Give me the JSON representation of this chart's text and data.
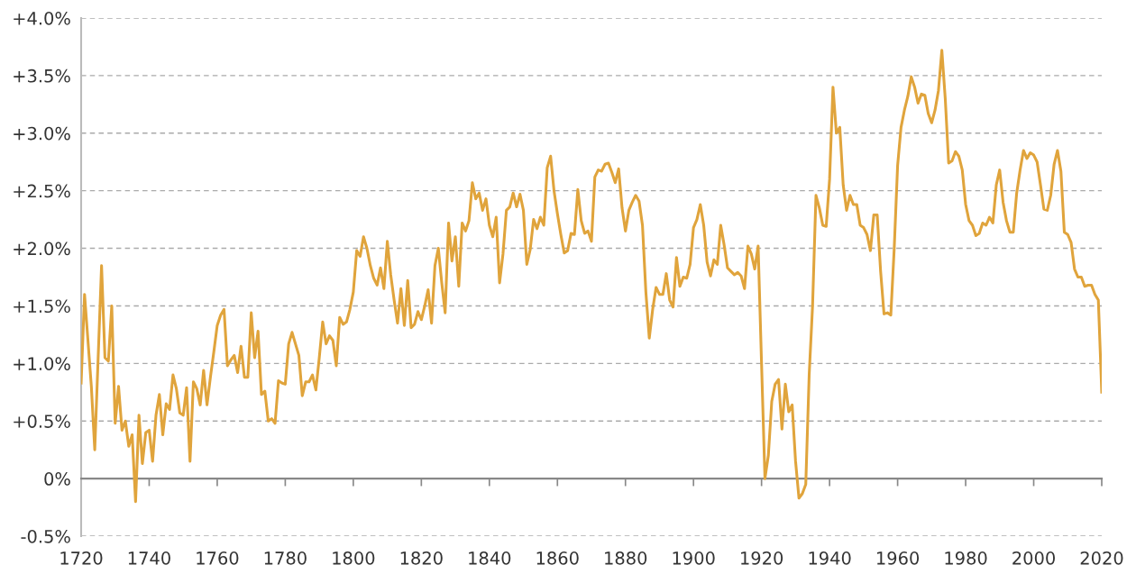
{
  "chart_data": {
    "type": "line",
    "color": "#e0a43c",
    "grid": "y",
    "line_style": "solid",
    "marker": "none",
    "x": [
      1720,
      1721,
      1723,
      1724,
      1726,
      1727,
      1728,
      1729,
      1730,
      1731,
      1732,
      1733,
      1734,
      1735,
      1736,
      1737,
      1738,
      1739,
      1740,
      1741,
      1742,
      1743,
      1744,
      1745,
      1746,
      1747,
      1748,
      1749,
      1750,
      1751,
      1752,
      1753,
      1754,
      1755,
      1756,
      1757,
      1758,
      1759,
      1760,
      1761,
      1762,
      1763,
      1764,
      1765,
      1766,
      1767,
      1768,
      1769,
      1770,
      1771,
      1772,
      1773,
      1774,
      1775,
      1776,
      1777,
      1778,
      1779,
      1780,
      1781,
      1782,
      1783,
      1784,
      1785,
      1786,
      1787,
      1788,
      1789,
      1790,
      1791,
      1792,
      1793,
      1794,
      1795,
      1796,
      1797,
      1798,
      1799,
      1800,
      1801,
      1802,
      1803,
      1804,
      1805,
      1806,
      1807,
      1808,
      1809,
      1810,
      1811,
      1812,
      1813,
      1814,
      1815,
      1816,
      1817,
      1818,
      1819,
      1820,
      1821,
      1822,
      1823,
      1824,
      1825,
      1826,
      1827,
      1828,
      1829,
      1830,
      1831,
      1832,
      1833,
      1834,
      1835,
      1836,
      1837,
      1838,
      1839,
      1840,
      1841,
      1842,
      1843,
      1844,
      1845,
      1846,
      1847,
      1848,
      1849,
      1850,
      1851,
      1852,
      1853,
      1854,
      1855,
      1856,
      1857,
      1858,
      1859,
      1860,
      1861,
      1862,
      1863,
      1864,
      1865,
      1866,
      1867,
      1868,
      1869,
      1870,
      1871,
      1872,
      1873,
      1874,
      1875,
      1876,
      1877,
      1878,
      1879,
      1880,
      1881,
      1882,
      1883,
      1884,
      1885,
      1886,
      1887,
      1888,
      1889,
      1890,
      1891,
      1892,
      1893,
      1894,
      1895,
      1896,
      1897,
      1898,
      1899,
      1900,
      1901,
      1902,
      1903,
      1904,
      1905,
      1906,
      1907,
      1908,
      1909,
      1910,
      1911,
      1912,
      1913,
      1914,
      1915,
      1916,
      1917,
      1918,
      1919,
      1920,
      1921,
      1922,
      1923,
      1924,
      1925,
      1926,
      1927,
      1928,
      1929,
      1930,
      1931,
      1932,
      1933,
      1934,
      1935,
      1936,
      1937,
      1938,
      1939,
      1940,
      1941,
      1942,
      1943,
      1944,
      1945,
      1946,
      1947,
      1948,
      1949,
      1950,
      1951,
      1952,
      1953,
      1954,
      1955,
      1956,
      1957,
      1958,
      1959,
      1960,
      1961,
      1962,
      1963,
      1964,
      1965,
      1966,
      1967,
      1968,
      1969,
      1970,
      1971,
      1972,
      1973,
      1974,
      1975,
      1976,
      1977,
      1978,
      1979,
      1980,
      1981,
      1982,
      1983,
      1984,
      1985,
      1986,
      1987,
      1988,
      1989,
      1990,
      1991,
      1992,
      1993,
      1994,
      1995,
      1996,
      1997,
      1998,
      1999,
      2000,
      2001,
      2002,
      2003,
      2004,
      2005,
      2006,
      2007,
      2008,
      2009,
      2010,
      2011,
      2012,
      2013,
      2014,
      2015,
      2016,
      2017,
      2018,
      2019,
      2020
    ],
    "values": [
      0.83,
      1.6,
      0.8,
      0.25,
      1.85,
      1.05,
      1.02,
      1.5,
      0.48,
      0.8,
      0.42,
      0.5,
      0.28,
      0.38,
      -0.2,
      0.55,
      0.13,
      0.4,
      0.42,
      0.15,
      0.55,
      0.73,
      0.38,
      0.65,
      0.6,
      0.9,
      0.78,
      0.57,
      0.55,
      0.79,
      0.15,
      0.84,
      0.78,
      0.64,
      0.94,
      0.64,
      0.88,
      1.1,
      1.33,
      1.42,
      1.47,
      0.98,
      1.03,
      1.07,
      0.92,
      1.15,
      0.88,
      0.88,
      1.44,
      1.05,
      1.28,
      0.73,
      0.76,
      0.5,
      0.52,
      0.48,
      0.85,
      0.83,
      0.82,
      1.17,
      1.27,
      1.17,
      1.07,
      0.72,
      0.84,
      0.84,
      0.9,
      0.77,
      1.05,
      1.36,
      1.17,
      1.24,
      1.2,
      0.98,
      1.4,
      1.34,
      1.36,
      1.47,
      1.62,
      1.98,
      1.93,
      2.1,
      2.0,
      1.85,
      1.74,
      1.68,
      1.83,
      1.65,
      2.06,
      1.77,
      1.55,
      1.35,
      1.65,
      1.33,
      1.72,
      1.31,
      1.34,
      1.45,
      1.38,
      1.5,
      1.64,
      1.35,
      1.85,
      2.0,
      1.7,
      1.44,
      2.22,
      1.89,
      2.1,
      1.67,
      2.22,
      2.15,
      2.24,
      2.57,
      2.43,
      2.48,
      2.33,
      2.43,
      2.2,
      2.1,
      2.27,
      1.7,
      1.95,
      2.33,
      2.36,
      2.48,
      2.36,
      2.47,
      2.33,
      1.86,
      1.99,
      2.25,
      2.17,
      2.27,
      2.2,
      2.7,
      2.8,
      2.5,
      2.3,
      2.12,
      1.96,
      1.98,
      2.13,
      2.12,
      2.51,
      2.24,
      2.13,
      2.15,
      2.06,
      2.62,
      2.68,
      2.67,
      2.73,
      2.74,
      2.66,
      2.57,
      2.69,
      2.35,
      2.15,
      2.33,
      2.4,
      2.46,
      2.41,
      2.2,
      1.62,
      1.22,
      1.47,
      1.66,
      1.6,
      1.6,
      1.78,
      1.55,
      1.49,
      1.92,
      1.67,
      1.75,
      1.74,
      1.86,
      2.18,
      2.25,
      2.38,
      2.2,
      1.88,
      1.76,
      1.9,
      1.86,
      2.2,
      2.03,
      1.83,
      1.8,
      1.77,
      1.79,
      1.76,
      1.65,
      2.02,
      1.95,
      1.82,
      2.02,
      1.0,
      0.0,
      0.2,
      0.67,
      0.82,
      0.86,
      0.43,
      0.82,
      0.58,
      0.64,
      0.15,
      -0.17,
      -0.13,
      -0.05,
      0.9,
      1.5,
      2.46,
      2.35,
      2.2,
      2.19,
      2.6,
      3.4,
      3.0,
      3.05,
      2.55,
      2.33,
      2.46,
      2.38,
      2.38,
      2.2,
      2.18,
      2.12,
      1.98,
      2.29,
      2.29,
      1.8,
      1.43,
      1.44,
      1.42,
      2.0,
      2.72,
      3.05,
      3.2,
      3.32,
      3.49,
      3.4,
      3.26,
      3.34,
      3.33,
      3.17,
      3.09,
      3.2,
      3.37,
      3.72,
      3.3,
      2.74,
      2.76,
      2.84,
      2.8,
      2.68,
      2.38,
      2.24,
      2.2,
      2.11,
      2.13,
      2.22,
      2.2,
      2.27,
      2.22,
      2.55,
      2.68,
      2.4,
      2.24,
      2.14,
      2.14,
      2.48,
      2.68,
      2.85,
      2.78,
      2.83,
      2.81,
      2.75,
      2.55,
      2.34,
      2.33,
      2.46,
      2.73,
      2.85,
      2.67,
      2.14,
      2.12,
      2.05,
      1.82,
      1.75,
      1.75,
      1.67,
      1.68,
      1.68,
      1.6,
      1.55,
      0.75
    ],
    "xlim": [
      1720,
      2020
    ],
    "xticks": [
      1720,
      1740,
      1760,
      1780,
      1800,
      1820,
      1840,
      1860,
      1880,
      1900,
      1920,
      1940,
      1960,
      1980,
      2000,
      2020
    ],
    "ylim": [
      -0.5,
      4.0
    ],
    "yticks": [
      {
        "value": -0.5,
        "label": "-0.5%"
      },
      {
        "value": 0,
        "label": "0%"
      },
      {
        "value": 0.5,
        "label": "+0.5%"
      },
      {
        "value": 1.0,
        "label": "+1.0%"
      },
      {
        "value": 1.5,
        "label": "+1.5%"
      },
      {
        "value": 2.0,
        "label": "+2.0%"
      },
      {
        "value": 2.5,
        "label": "+2.5%"
      },
      {
        "value": 3.0,
        "label": "+3.0%"
      },
      {
        "value": 3.5,
        "label": "+3.5%"
      },
      {
        "value": 4.0,
        "label": "+4.0%"
      }
    ]
  }
}
